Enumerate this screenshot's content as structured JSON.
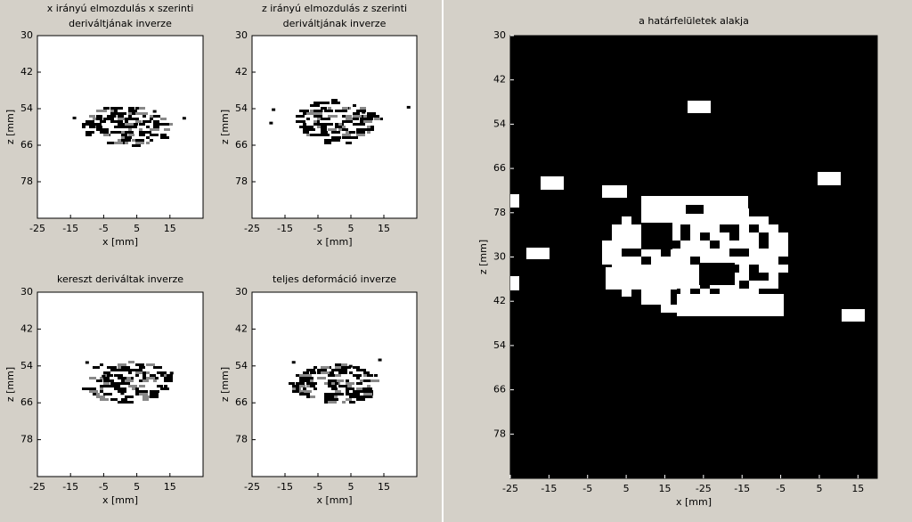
{
  "chart_data": [
    {
      "type": "image",
      "title": [
        "x irányú elmozdulás x szerinti",
        "deriváltjának inverze"
      ],
      "xlabel": "x [mm]",
      "ylabel": "z [mm]",
      "xlim": [
        -25,
        25
      ],
      "ylim": [
        30,
        90
      ],
      "y_reversed": true,
      "background": "#ffffff",
      "xticks": [
        -25,
        -15,
        -5,
        5,
        15
      ],
      "yticks": [
        30,
        42,
        54,
        66,
        78
      ]
    },
    {
      "type": "image",
      "title": [
        "z irányú elmozdulás z szerinti",
        "deriváltjának inverze"
      ],
      "xlabel": "x [mm]",
      "ylabel": "z [mm]",
      "xlim": [
        -25,
        25
      ],
      "ylim": [
        30,
        90
      ],
      "y_reversed": true,
      "background": "#ffffff",
      "xticks": [
        -25,
        -15,
        -5,
        5,
        15
      ],
      "yticks": [
        30,
        42,
        54,
        66,
        78
      ]
    },
    {
      "type": "image",
      "title": [
        "kereszt deriváltak inverze"
      ],
      "xlabel": "x [mm]",
      "ylabel": "z [mm]",
      "xlim": [
        -25,
        25
      ],
      "ylim": [
        30,
        90
      ],
      "y_reversed": true,
      "background": "#ffffff",
      "xticks": [
        -25,
        -15,
        -5,
        5,
        15
      ],
      "yticks": [
        30,
        42,
        54,
        66,
        78
      ]
    },
    {
      "type": "image",
      "title": [
        "teljes deformáció inverze"
      ],
      "xlabel": "x [mm]",
      "ylabel": "z [mm]",
      "xlim": [
        -25,
        25
      ],
      "ylim": [
        30,
        90
      ],
      "y_reversed": true,
      "background": "#ffffff",
      "xticks": [
        -25,
        -15,
        -5,
        5,
        15
      ],
      "yticks": [
        30,
        42,
        54,
        66,
        78
      ]
    },
    {
      "type": "image",
      "title": [
        "a határfelületek alakja"
      ],
      "xlabel": "x [mm]",
      "ylabel": "z [mm]",
      "xlim": [
        -25,
        70
      ],
      "ylim": [
        30,
        150
      ],
      "y_reversed": true,
      "background": "#000000",
      "xticks": [
        -25,
        -15,
        -5,
        5,
        15,
        {
          "value": 25,
          "label": "-25"
        },
        {
          "value": 35,
          "label": "-15"
        },
        {
          "value": 45,
          "label": "-5"
        },
        {
          "value": 55,
          "label": "5"
        },
        {
          "value": 65,
          "label": "15"
        }
      ],
      "yticks": [
        30,
        42,
        54,
        66,
        78,
        {
          "value": 90,
          "label": "30"
        },
        {
          "value": 102,
          "label": "42"
        },
        {
          "value": 114,
          "label": "54"
        },
        {
          "value": 126,
          "label": "66"
        },
        {
          "value": 138,
          "label": "78"
        }
      ]
    }
  ]
}
